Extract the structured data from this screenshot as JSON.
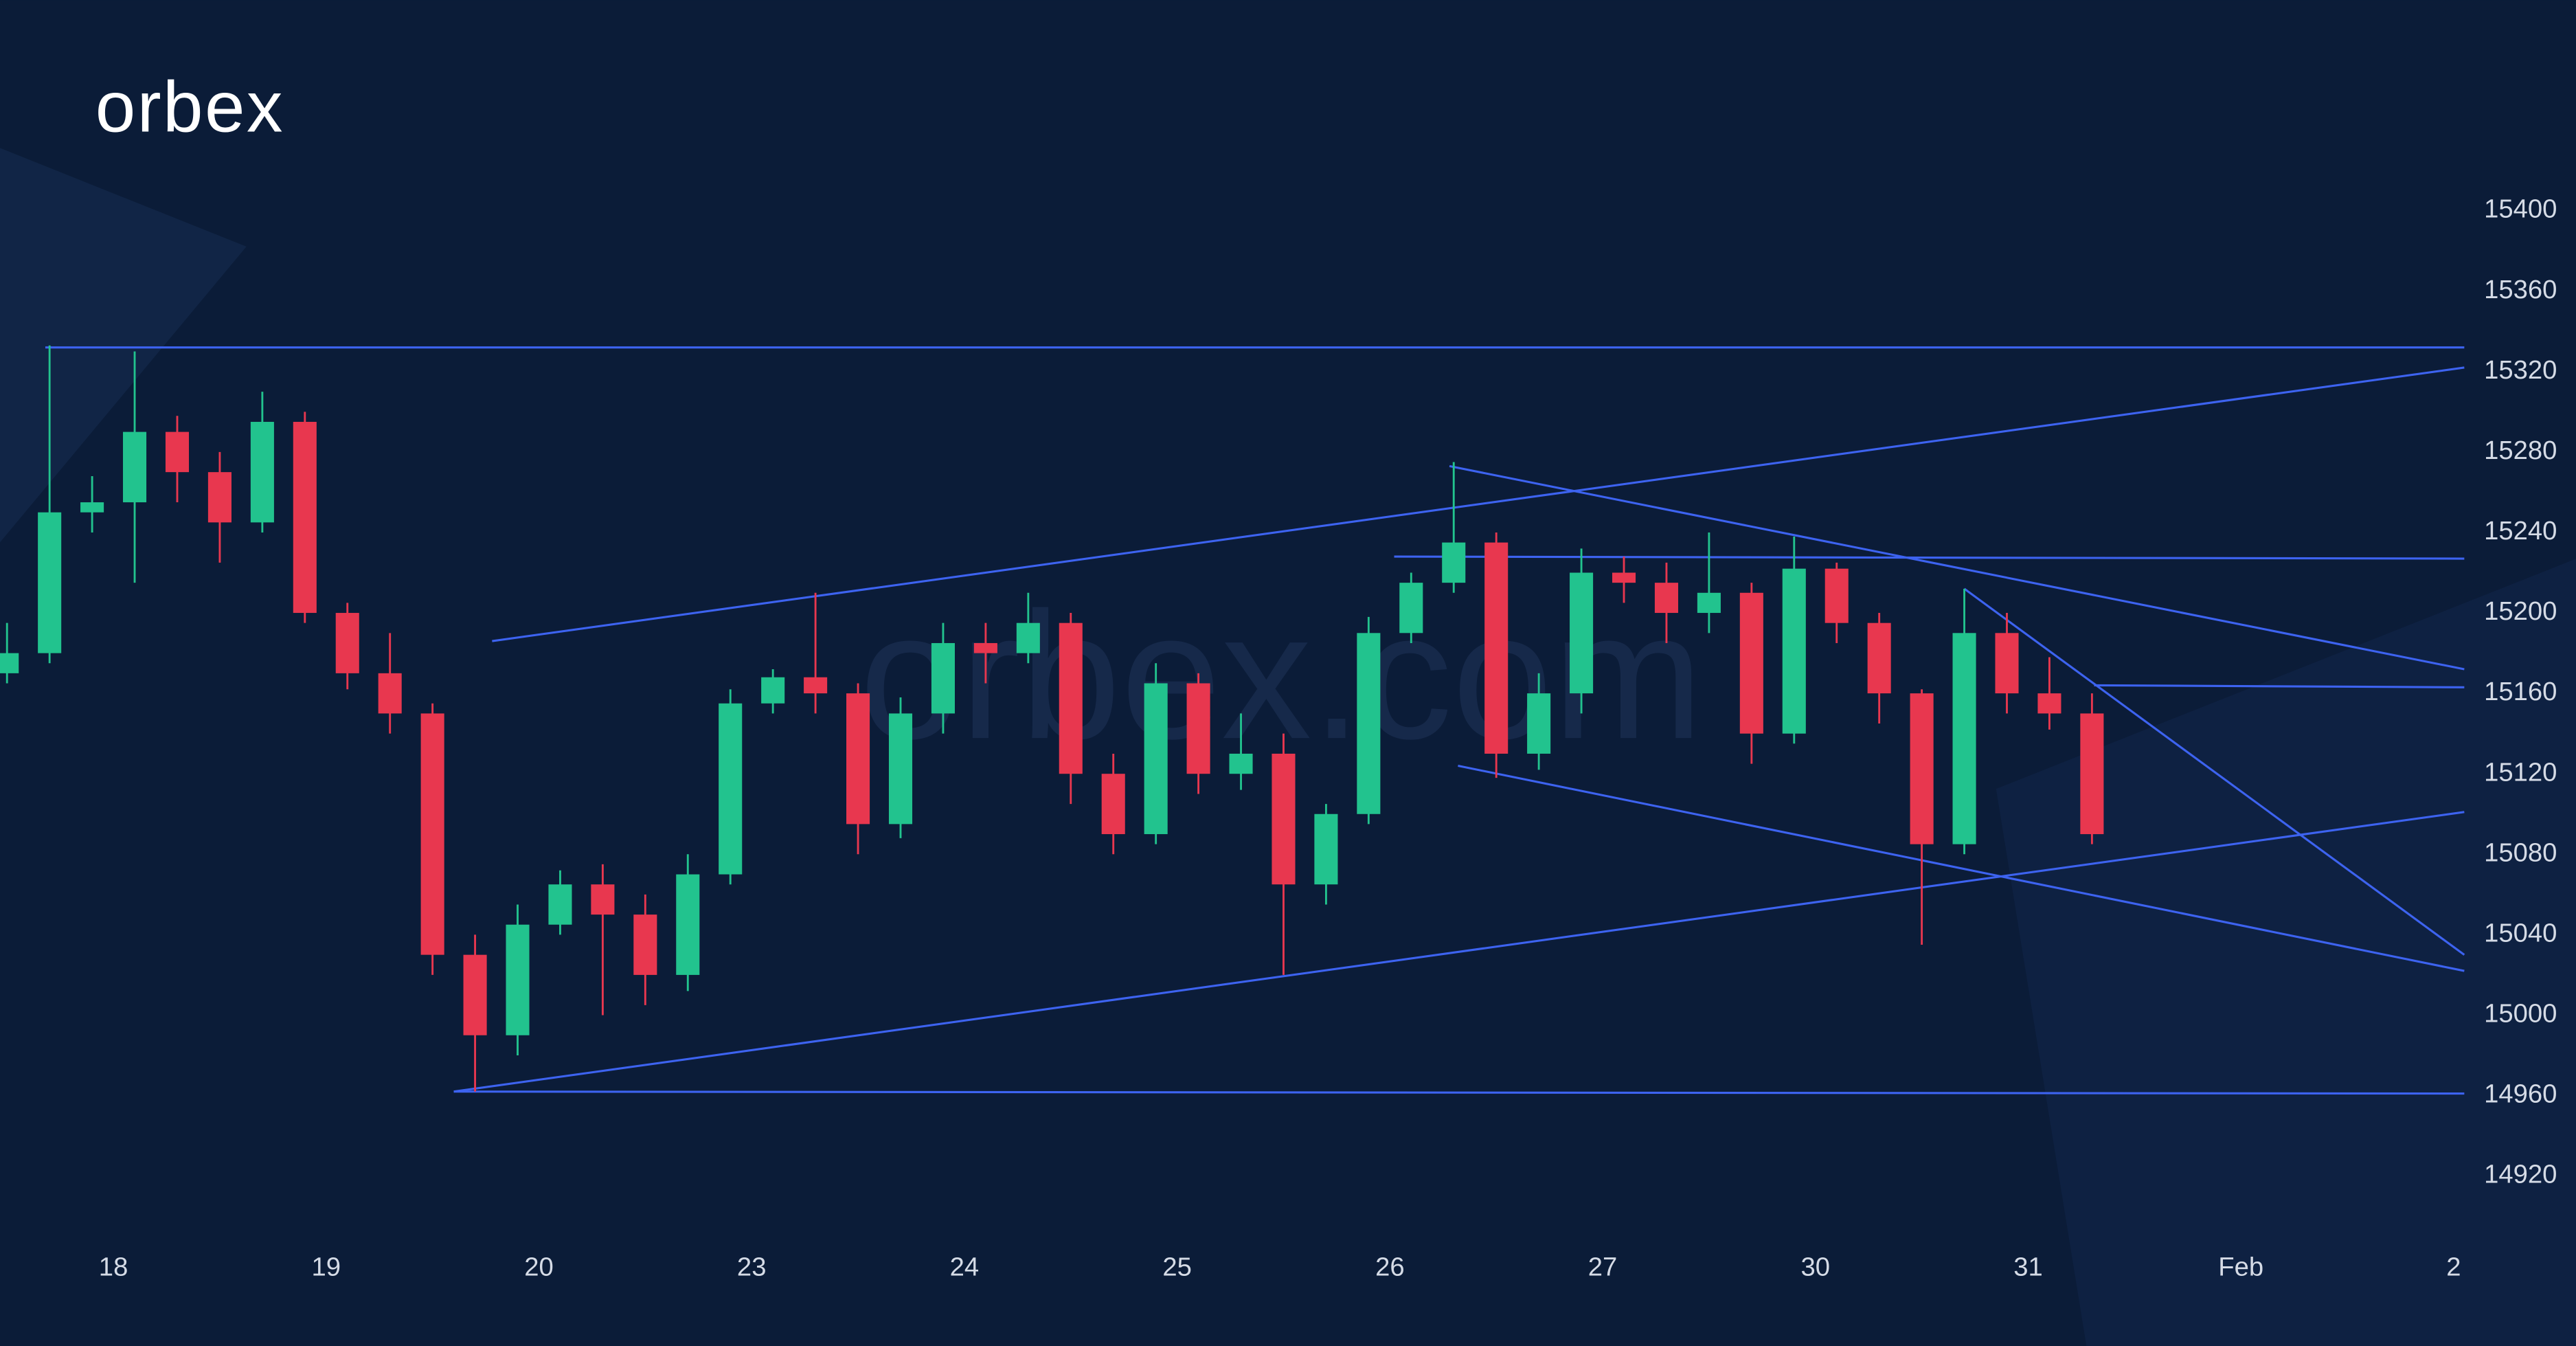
{
  "brand": "orbex",
  "watermark": "orbex.com",
  "chart_data": {
    "type": "candlestick",
    "up_color": "#22c38e",
    "down_color": "#e8374f",
    "line_color": "#3d63f0",
    "xlim": [
      -0.533,
      11.05
    ],
    "ylim": [
      14896,
      15423
    ],
    "xticks": [
      {
        "value": 0,
        "label": "18"
      },
      {
        "value": 1,
        "label": "19"
      },
      {
        "value": 2,
        "label": "20"
      },
      {
        "value": 3,
        "label": "23"
      },
      {
        "value": 4,
        "label": "24"
      },
      {
        "value": 5,
        "label": "25"
      },
      {
        "value": 6,
        "label": "26"
      },
      {
        "value": 7,
        "label": "27"
      },
      {
        "value": 8,
        "label": "30"
      },
      {
        "value": 9,
        "label": "31"
      },
      {
        "value": 10,
        "label": "Feb"
      },
      {
        "value": 11,
        "label": "2"
      }
    ],
    "yticks": [
      14920,
      14960,
      15000,
      15040,
      15080,
      15120,
      15160,
      15200,
      15240,
      15280,
      15320,
      15360,
      15400
    ],
    "x": [
      -0.5,
      -0.3,
      -0.1,
      0.1,
      0.3,
      0.5,
      0.7,
      0.9,
      1.1,
      1.3,
      1.5,
      1.7,
      1.9,
      2.1,
      2.3,
      2.5,
      2.7,
      2.9,
      3.1,
      3.3,
      3.5,
      3.7,
      3.9,
      4.1,
      4.3,
      4.5,
      4.7,
      4.9,
      5.1,
      5.3,
      5.5,
      5.7,
      5.9,
      6.1,
      6.3,
      6.5,
      6.7,
      6.9,
      7.1,
      7.3,
      7.5,
      7.7,
      7.9,
      8.1,
      8.3,
      8.5,
      8.7,
      8.9,
      9.1,
      9.3
    ],
    "open": [
      15170,
      15180,
      15250,
      15255,
      15290,
      15270,
      15245,
      15295,
      15200,
      15170,
      15150,
      15030,
      14990,
      15045,
      15065,
      15050,
      15020,
      15070,
      15155,
      15168,
      15160,
      15095,
      15150,
      15185,
      15180,
      15195,
      15120,
      15090,
      15165,
      15120,
      15130,
      15065,
      15100,
      15190,
      15215,
      15235,
      15130,
      15160,
      15220,
      15215,
      15200,
      15210,
      15140,
      15222,
      15195,
      15160,
      15085,
      15190,
      15160,
      15150
    ],
    "high": [
      15195,
      15333,
      15268,
      15330,
      15298,
      15280,
      15310,
      15300,
      15205,
      15190,
      15155,
      15040,
      15055,
      15072,
      15075,
      15060,
      15080,
      15162,
      15172,
      15210,
      15165,
      15158,
      15195,
      15195,
      15210,
      15200,
      15130,
      15175,
      15170,
      15150,
      15140,
      15105,
      15198,
      15220,
      15275,
      15240,
      15170,
      15232,
      15228,
      15225,
      15240,
      15215,
      15238,
      15225,
      15200,
      15162,
      15212,
      15200,
      15178,
      15160
    ],
    "low": [
      15165,
      15175,
      15240,
      15215,
      15255,
      15225,
      15240,
      15195,
      15162,
      15140,
      15020,
      14962,
      14980,
      15040,
      15000,
      15005,
      15012,
      15065,
      15150,
      15150,
      15080,
      15088,
      15140,
      15165,
      15175,
      15105,
      15080,
      15085,
      15110,
      15112,
      15020,
      15055,
      15095,
      15185,
      15210,
      15118,
      15122,
      15150,
      15205,
      15185,
      15190,
      15125,
      15135,
      15185,
      15145,
      15035,
      15080,
      15150,
      15142,
      15085
    ],
    "close": [
      15180,
      15250,
      15255,
      15290,
      15270,
      15245,
      15295,
      15200,
      15170,
      15150,
      15030,
      14990,
      15045,
      15065,
      15050,
      15020,
      15070,
      15155,
      15168,
      15160,
      15095,
      15150,
      15185,
      15180,
      15195,
      15120,
      15090,
      15165,
      15120,
      15130,
      15065,
      15100,
      15190,
      15215,
      15235,
      15130,
      15160,
      15220,
      15215,
      15200,
      15210,
      15140,
      15222,
      15195,
      15160,
      15085,
      15190,
      15160,
      15150,
      15090
    ],
    "lines": [
      {
        "x": [
          -0.32,
          11.05
        ],
        "y": [
          15332,
          15332
        ]
      },
      {
        "x": [
          1.78,
          11.05
        ],
        "y": [
          15186,
          15322
        ]
      },
      {
        "x": [
          1.6,
          11.05
        ],
        "y": [
          14962,
          14961
        ]
      },
      {
        "x": [
          1.6,
          11.05
        ],
        "y": [
          14962,
          15101
        ]
      },
      {
        "x": [
          6.28,
          11.05
        ],
        "y": [
          15273,
          15172
        ]
      },
      {
        "x": [
          6.02,
          11.05
        ],
        "y": [
          15228,
          15227
        ]
      },
      {
        "x": [
          6.32,
          11.05
        ],
        "y": [
          15124,
          15022
        ]
      },
      {
        "x": [
          8.7,
          11.05
        ],
        "y": [
          15212,
          15030
        ]
      },
      {
        "x": [
          9.31,
          11.05
        ],
        "y": [
          15164,
          15163
        ]
      }
    ]
  }
}
